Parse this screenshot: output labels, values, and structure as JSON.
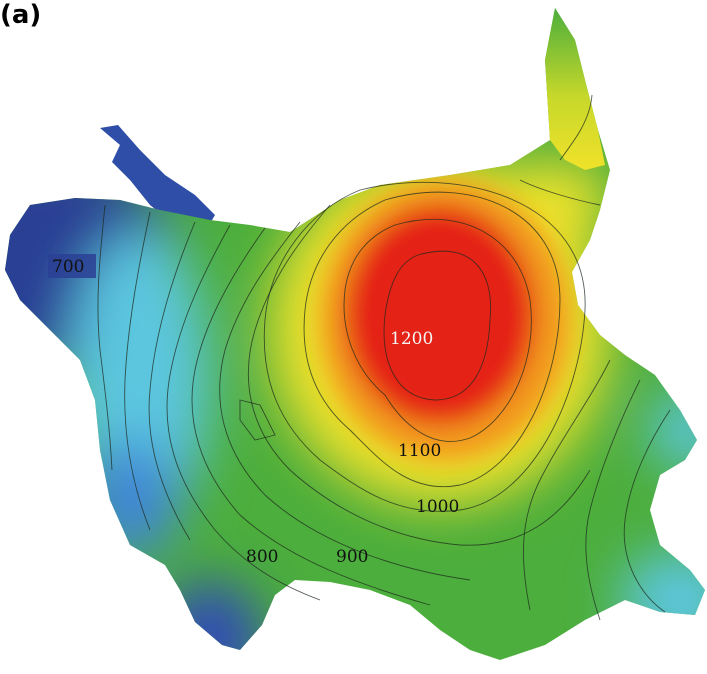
{
  "panel_label": "(a)",
  "contour_labels": {
    "c700": "700",
    "c800": "800",
    "c900": "900",
    "c1000": "1000",
    "c1100": "1100",
    "c1200": "1200"
  },
  "colors": {
    "low": "#2a3f94",
    "blue": "#3f86d6",
    "cyan": "#5cc6df",
    "green": "#4cae3c",
    "yellow": "#f0e22a",
    "orange": "#f29a1e",
    "red": "#e52318"
  }
}
